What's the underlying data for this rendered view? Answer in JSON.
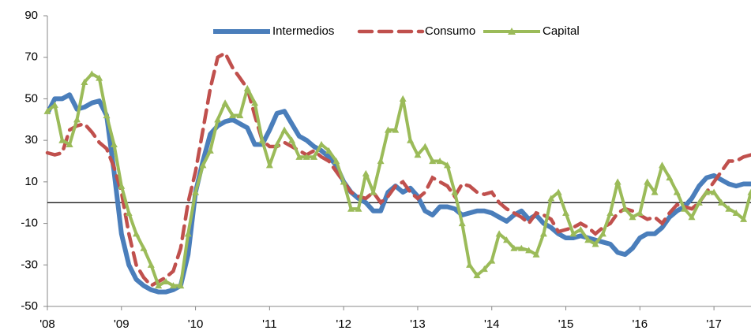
{
  "chart_data": {
    "type": "line",
    "x": [
      2008.0,
      2008.1,
      2008.2,
      2008.3,
      2008.4,
      2008.5,
      2008.6,
      2008.7,
      2008.8,
      2008.9,
      2009.0,
      2009.1,
      2009.2,
      2009.3,
      2009.4,
      2009.5,
      2009.6,
      2009.7,
      2009.8,
      2009.9,
      2010.0,
      2010.1,
      2010.2,
      2010.3,
      2010.4,
      2010.5,
      2010.6,
      2010.7,
      2010.8,
      2010.9,
      2011.0,
      2011.1,
      2011.2,
      2011.3,
      2011.4,
      2011.5,
      2011.6,
      2011.7,
      2011.8,
      2011.9,
      2012.0,
      2012.1,
      2012.2,
      2012.3,
      2012.4,
      2012.5,
      2012.6,
      2012.7,
      2012.8,
      2012.9,
      2013.0,
      2013.1,
      2013.2,
      2013.3,
      2013.4,
      2013.5,
      2013.6,
      2013.7,
      2013.8,
      2013.9,
      2014.0,
      2014.1,
      2014.2,
      2014.3,
      2014.4,
      2014.5,
      2014.6,
      2014.7,
      2014.8,
      2014.9,
      2015.0,
      2015.1,
      2015.2,
      2015.3,
      2015.4,
      2015.5,
      2015.6,
      2015.7,
      2015.8,
      2015.9,
      2016.0,
      2016.1,
      2016.2,
      2016.3,
      2016.4,
      2016.5,
      2016.6,
      2016.7,
      2016.8,
      2016.9,
      2017.0,
      2017.1,
      2017.2,
      2017.3,
      2017.4,
      2017.5
    ],
    "series": [
      {
        "name": "Intermedios",
        "color": "#4a7ebb",
        "style": "solid",
        "marker": "none",
        "values": [
          43,
          50,
          50,
          52,
          45,
          46,
          48,
          49,
          42,
          15,
          -15,
          -30,
          -37,
          -40,
          -42,
          -43,
          -43,
          -42,
          -40,
          -25,
          5,
          20,
          33,
          37,
          39,
          40,
          38,
          36,
          28,
          28,
          35,
          43,
          44,
          38,
          32,
          30,
          27,
          25,
          22,
          18,
          10,
          5,
          2,
          0,
          -4,
          -4,
          5,
          8,
          5,
          7,
          3,
          -4,
          -6,
          -2,
          -2,
          -3,
          -6,
          -5,
          -4,
          -4,
          -5,
          -7,
          -9,
          -6,
          -4,
          -8,
          -6,
          -10,
          -12,
          -15,
          -17,
          -17,
          -16,
          -17,
          -18,
          -19,
          -20,
          -24,
          -25,
          -22,
          -17,
          -15,
          -15,
          -12,
          -7,
          -4,
          -2,
          2,
          8,
          12,
          13,
          11,
          9,
          8,
          9,
          9
        ]
      },
      {
        "name": "Consumo",
        "color": "#c0504d",
        "style": "dashed",
        "marker": "none",
        "values": [
          24,
          23,
          24,
          35,
          37,
          38,
          34,
          29,
          26,
          17,
          5,
          -15,
          -30,
          -36,
          -40,
          -38,
          -36,
          -33,
          -22,
          0,
          15,
          35,
          55,
          70,
          72,
          65,
          60,
          55,
          42,
          30,
          27,
          27,
          29,
          27,
          25,
          23,
          25,
          22,
          20,
          15,
          10,
          5,
          3,
          2,
          5,
          0,
          3,
          8,
          10,
          5,
          2,
          5,
          12,
          10,
          8,
          3,
          9,
          8,
          5,
          4,
          5,
          0,
          -3,
          -5,
          -7,
          -10,
          -5,
          -6,
          -8,
          -14,
          -13,
          -12,
          -10,
          -12,
          -15,
          -12,
          -10,
          -5,
          -3,
          -4,
          -6,
          -8,
          -7,
          -10,
          -5,
          -1,
          -2,
          -3,
          0,
          5,
          10,
          15,
          20,
          20,
          22,
          23
        ]
      },
      {
        "name": "Capital",
        "color": "#9bbb59",
        "style": "solid",
        "marker": "triangle",
        "values": [
          44,
          47,
          30,
          28,
          40,
          58,
          62,
          60,
          42,
          28,
          8,
          -5,
          -15,
          -22,
          -30,
          -40,
          -38,
          -40,
          -40,
          -15,
          5,
          18,
          25,
          40,
          48,
          42,
          42,
          55,
          48,
          30,
          18,
          28,
          35,
          30,
          22,
          22,
          22,
          28,
          25,
          20,
          10,
          -3,
          -3,
          14,
          5,
          20,
          35,
          35,
          50,
          30,
          23,
          27,
          20,
          20,
          18,
          5,
          -10,
          -30,
          -35,
          -32,
          -28,
          -15,
          -18,
          -22,
          -22,
          -23,
          -25,
          -15,
          2,
          5,
          -5,
          -15,
          -13,
          -18,
          -20,
          -15,
          -5,
          10,
          -3,
          -7,
          -5,
          10,
          5,
          18,
          12,
          5,
          -3,
          -7,
          0,
          5,
          5,
          0,
          -3,
          -5,
          -8,
          5
        ]
      }
    ],
    "xlim": [
      2008,
      2017.5
    ],
    "xticks": [
      {
        "value": 2008,
        "label": "'08"
      },
      {
        "value": 2009,
        "label": "'09"
      },
      {
        "value": 2010,
        "label": "'10"
      },
      {
        "value": 2011,
        "label": "'11"
      },
      {
        "value": 2012,
        "label": "'12"
      },
      {
        "value": 2013,
        "label": "'13"
      },
      {
        "value": 2014,
        "label": "'14"
      },
      {
        "value": 2015,
        "label": "'15"
      },
      {
        "value": 2016,
        "label": "'16"
      },
      {
        "value": 2017,
        "label": "'17"
      }
    ],
    "ylim": [
      -50,
      90
    ],
    "yticks": [
      -50,
      -30,
      -10,
      10,
      30,
      50,
      70,
      90
    ],
    "reference_line": 0,
    "grid": false,
    "legend": "top"
  }
}
